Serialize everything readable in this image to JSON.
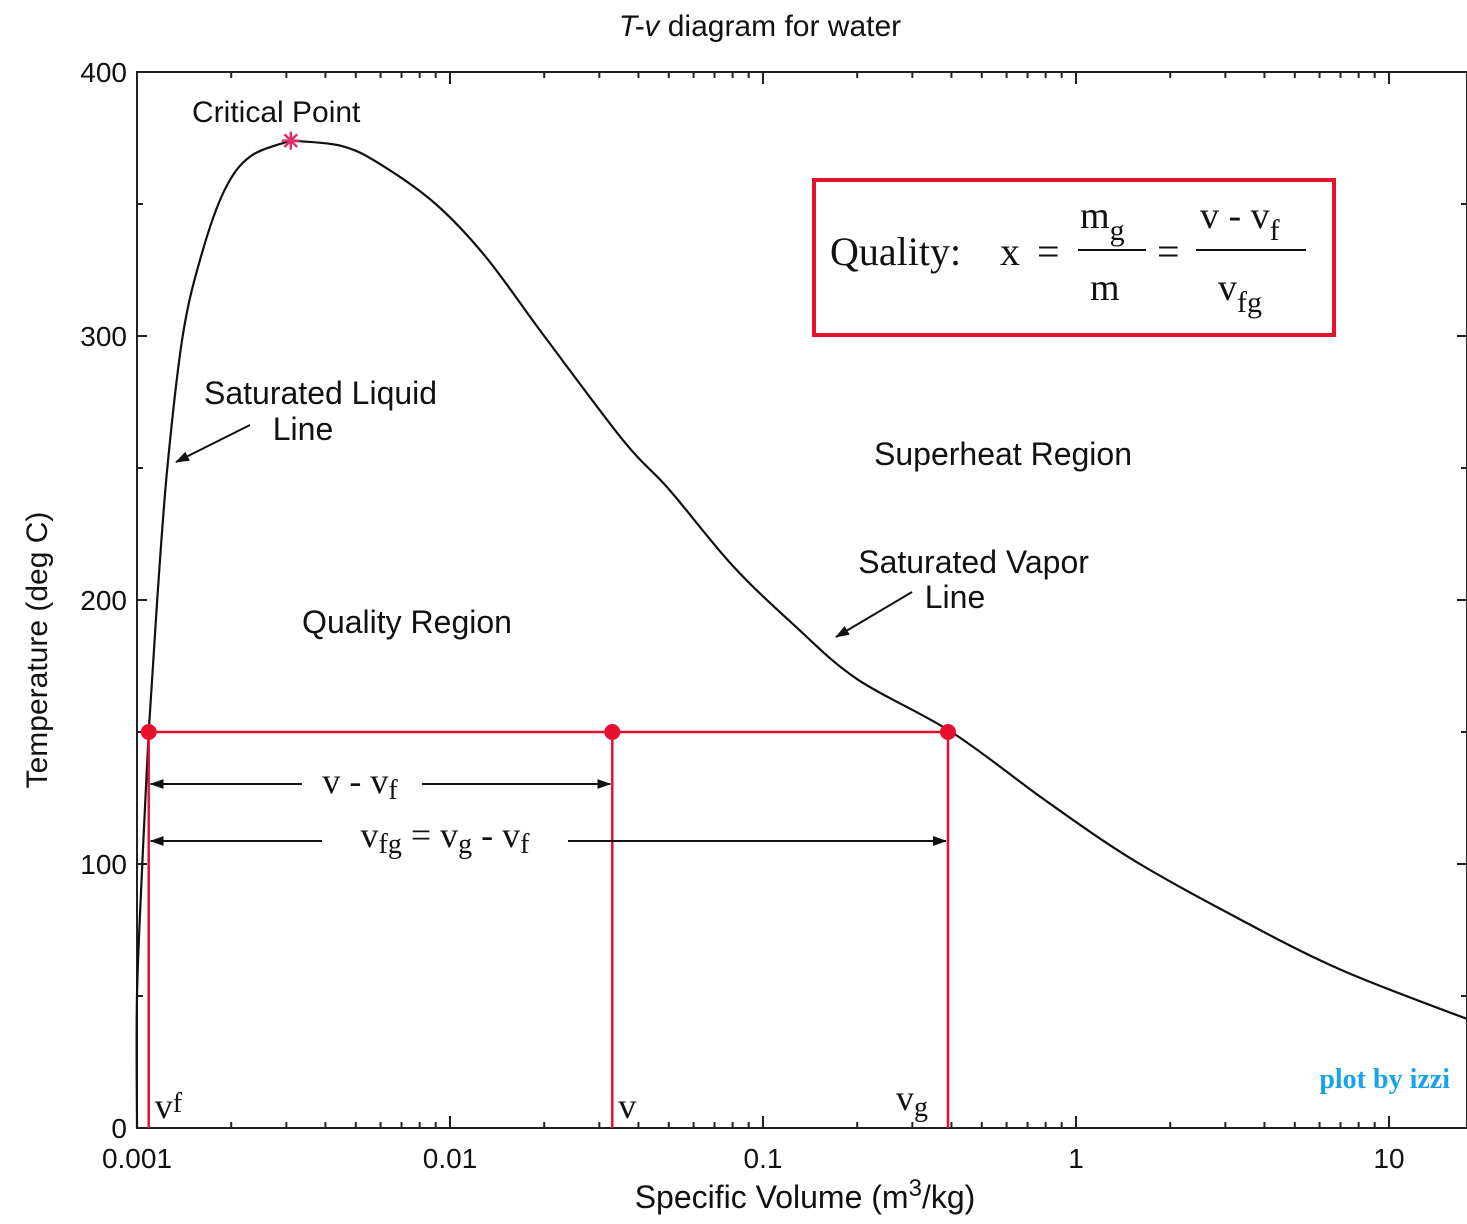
{
  "chart_data": {
    "type": "line",
    "title": "T-v diagram for water",
    "title_parts": {
      "italic": "T-v",
      "rest": " diagram for water"
    },
    "xlabel": {
      "main": "Specific Volume (m",
      "sup": "3",
      "end": "/kg)"
    },
    "ylabel": "Temperature (deg C)",
    "x_scale": "log",
    "xlim": [
      0.001,
      20
    ],
    "ylim": [
      0,
      400
    ],
    "x_tick_labels": [
      "0.001",
      "0.01",
      "0.1",
      "1",
      "10"
    ],
    "x_tick_values": [
      0.001,
      0.01,
      0.1,
      1,
      10
    ],
    "y_tick_labels": [
      "0",
      "100",
      "200",
      "300",
      "400"
    ],
    "y_tick_values": [
      0,
      100,
      200,
      300,
      400
    ],
    "grid": false,
    "colors": {
      "curve": "#111111",
      "construction": "#e8112d",
      "critical_marker": "#e0306a",
      "credit": "#1aa3e8"
    },
    "series": [
      {
        "name": "Saturated Liquid Line",
        "points": [
          [
            0.001,
            0
          ],
          [
            0.001,
            50
          ],
          [
            0.00104,
            100
          ],
          [
            0.00109,
            150
          ],
          [
            0.00116,
            200
          ],
          [
            0.00125,
            250
          ],
          [
            0.0014,
            300
          ],
          [
            0.0016,
            330
          ],
          [
            0.0019,
            355
          ],
          [
            0.0023,
            368
          ],
          [
            0.0031,
            374
          ]
        ]
      },
      {
        "name": "Saturated Vapor Line",
        "points": [
          [
            0.0031,
            374
          ],
          [
            0.0045,
            372
          ],
          [
            0.006,
            365
          ],
          [
            0.009,
            350
          ],
          [
            0.013,
            330
          ],
          [
            0.02,
            300
          ],
          [
            0.036,
            260
          ],
          [
            0.05,
            242
          ],
          [
            0.08,
            213
          ],
          [
            0.127,
            190
          ],
          [
            0.2,
            170
          ],
          [
            0.4,
            150
          ],
          [
            0.8,
            124
          ],
          [
            1.5,
            102
          ],
          [
            3.0,
            82
          ],
          [
            7.0,
            60
          ],
          [
            20.0,
            39
          ]
        ]
      }
    ],
    "critical_point": {
      "label": "Critical Point",
      "v": 0.0031,
      "T": 374
    },
    "construction": {
      "T": 150,
      "vf": 0.00109,
      "v": 0.033,
      "vg": 0.39,
      "point_labels": {
        "vf": "vf",
        "v": "v",
        "vg": "vg"
      }
    },
    "annotations": {
      "saturated_liquid": [
        "Saturated Liquid",
        "Line"
      ],
      "saturated_vapor": [
        "Saturated Vapor",
        "Line"
      ],
      "superheat_region": "Superheat Region",
      "quality_region": "Quality Region",
      "v_minus_vf": "v - vf",
      "vfg_eq": "vfg = vg - vf"
    },
    "formula": {
      "label": "Quality:",
      "x": "x",
      "num1": "mg",
      "den1": "m",
      "num2": "v - vf",
      "den2": "vfg"
    },
    "credit": "plot by izzi"
  }
}
